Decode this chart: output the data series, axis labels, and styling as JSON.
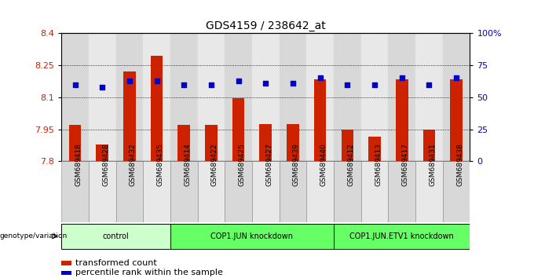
{
  "title": "GDS4159 / 238642_at",
  "samples": [
    "GSM689418",
    "GSM689428",
    "GSM689432",
    "GSM689435",
    "GSM689414",
    "GSM689422",
    "GSM689425",
    "GSM689427",
    "GSM689439",
    "GSM689440",
    "GSM689412",
    "GSM689413",
    "GSM689417",
    "GSM689431",
    "GSM689438"
  ],
  "bar_values": [
    7.97,
    7.88,
    8.22,
    8.295,
    7.97,
    7.97,
    8.095,
    7.975,
    7.975,
    8.185,
    7.95,
    7.915,
    8.185,
    7.95,
    8.185
  ],
  "dot_values": [
    60,
    58,
    63,
    63,
    60,
    60,
    63,
    61,
    61,
    65,
    60,
    60,
    65,
    60,
    65
  ],
  "ymin": 7.8,
  "ymax": 8.4,
  "yticks": [
    7.8,
    7.95,
    8.1,
    8.25,
    8.4
  ],
  "right_yticks": [
    0,
    25,
    50,
    75,
    100
  ],
  "groups": [
    {
      "label": "control",
      "start": 0,
      "end": 4,
      "color": "#ccffcc"
    },
    {
      "label": "COP1.JUN knockdown",
      "start": 4,
      "end": 10,
      "color": "#66ff66"
    },
    {
      "label": "COP1.JUN.ETV1 knockdown",
      "start": 10,
      "end": 15,
      "color": "#66ff66"
    }
  ],
  "bar_color": "#cc2200",
  "dot_color": "#0000cc",
  "bar_bottom": 7.8,
  "left_axis_color": "#cc2200",
  "right_axis_color": "#0000cc",
  "legend_items": [
    "transformed count",
    "percentile rank within the sample"
  ],
  "legend_colors": [
    "#cc2200",
    "#0000cc"
  ],
  "sample_bg_odd": "#d8d8d8",
  "sample_bg_even": "#e8e8e8",
  "fig_bg": "#ffffff"
}
